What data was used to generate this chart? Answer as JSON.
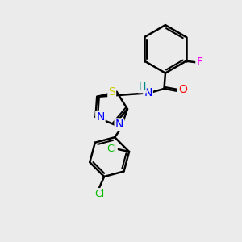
{
  "bg_color": "#ebebeb",
  "bond_color": "#000000",
  "bond_width": 1.8,
  "atom_colors": {
    "N": "#0000ff",
    "O": "#ff0000",
    "S": "#cccc00",
    "Cl": "#00bb00",
    "F": "#ff00ff",
    "H": "#008888",
    "C": "#000000"
  },
  "font_size": 9,
  "fig_size": [
    3.0,
    3.0
  ],
  "dpi": 100
}
